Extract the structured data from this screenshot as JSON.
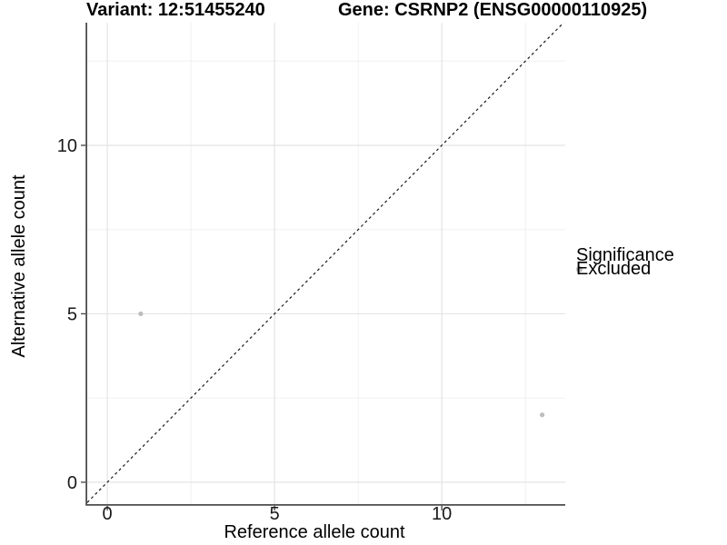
{
  "chart_data": {
    "type": "scatter",
    "title_left": "Variant: 12:51455240",
    "title_right": "Gene: CSRNP2 (ENSG00000110925)",
    "xlabel": "Reference allele count",
    "ylabel": "Alternative allele count",
    "xlim": [
      -0.6,
      13.69
    ],
    "ylim": [
      -0.65,
      13.64
    ],
    "x_major_ticks": [
      0,
      5,
      10
    ],
    "y_major_ticks": [
      0,
      5,
      10
    ],
    "x_minor_gridlines": [
      2.5,
      7.5,
      12.5
    ],
    "y_minor_gridlines": [
      2.5,
      7.5,
      12.5
    ],
    "grid": true,
    "identity_line": {
      "slope": 1,
      "intercept": 0,
      "style": "dashed",
      "color": "#1a1a1a"
    },
    "series": [
      {
        "name": "Excluded",
        "color": "#bdbdbd",
        "points": [
          {
            "x": 1,
            "y": 5
          },
          {
            "x": 13,
            "y": 2
          }
        ]
      }
    ],
    "legend": {
      "title": "Significance",
      "position": "right",
      "entries": [
        {
          "label": "Excluded",
          "color": "#bdbdbd",
          "marker": "circle"
        }
      ]
    },
    "colors": {
      "background": "#ffffff",
      "grid_major": "#e4e4e4",
      "grid_minor": "#f0f0f0",
      "axis": "#4d4d4d",
      "tick_text": "#1a1a1a",
      "point": "#bdbdbd"
    }
  }
}
